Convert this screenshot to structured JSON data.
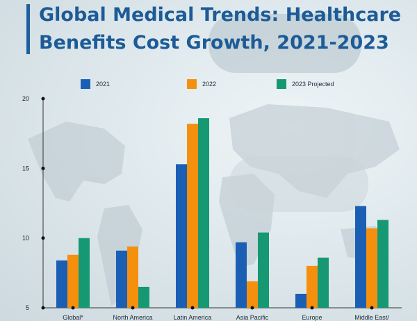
{
  "title_lines": [
    "Global Medical Trends: Healthcare",
    "Benefits Cost Growth, 2021-2023"
  ],
  "colors": {
    "2021": "#1b5fb5",
    "2022": "#f5900e",
    "2023 Projected": "#169873",
    "title": "#1d5b97"
  },
  "legend": [
    {
      "label": "2021",
      "color": "#1b5fb5"
    },
    {
      "label": "2022",
      "color": "#f5900e"
    },
    {
      "label": "2023 Projected",
      "color": "#169873"
    }
  ],
  "chart_data": {
    "type": "bar",
    "title": "Global Medical Trends: Healthcare Benefits Cost Growth, 2021-2023",
    "categories": [
      "Global*",
      "North America",
      "Latin America",
      "Asia Pacific",
      "Europe",
      "Middle East/"
    ],
    "series": [
      {
        "name": "2021",
        "values": [
          8.4,
          9.1,
          15.3,
          9.7,
          6.0,
          12.3
        ]
      },
      {
        "name": "2022",
        "values": [
          8.8,
          9.4,
          18.2,
          6.9,
          8.0,
          10.7
        ]
      },
      {
        "name": "2023 Projected",
        "values": [
          10.0,
          6.5,
          18.6,
          10.4,
          8.6,
          11.3
        ]
      }
    ],
    "yticks": [
      5,
      10,
      15,
      20
    ],
    "ylim": [
      5,
      20
    ],
    "xlabel": "",
    "ylabel": "",
    "grid": false,
    "legend_position": "top"
  }
}
